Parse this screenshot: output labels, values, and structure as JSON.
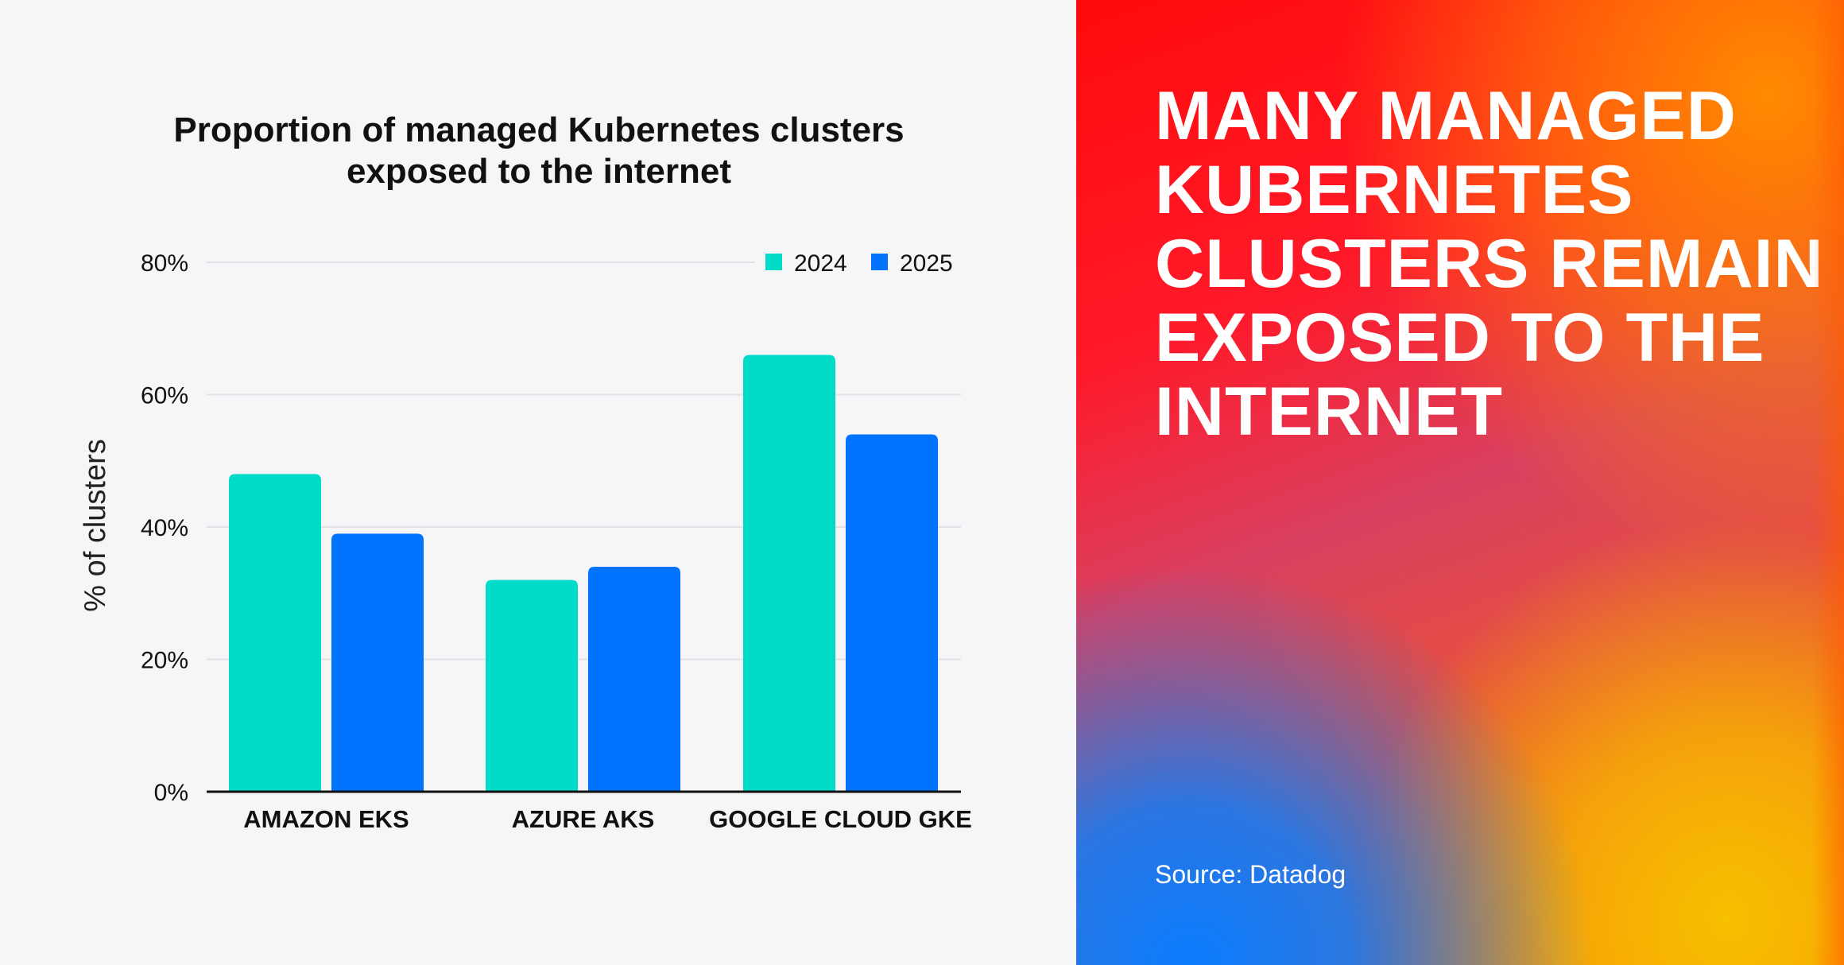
{
  "chart_data": {
    "type": "bar",
    "title": [
      "Proportion of managed Kubernetes clusters",
      "exposed to the internet"
    ],
    "xlabel": "",
    "ylabel": "% of clusters",
    "ylim": [
      0,
      80
    ],
    "yticks": [
      "0%",
      "20%",
      "40%",
      "60%",
      "80%"
    ],
    "ytick_values": [
      0,
      20,
      40,
      60,
      80
    ],
    "categories": [
      "AMAZON EKS",
      "AZURE AKS",
      "GOOGLE CLOUD GKE"
    ],
    "series": [
      {
        "name": "2024",
        "color": "#00dcc8",
        "values": [
          48,
          32,
          66
        ]
      },
      {
        "name": "2025",
        "color": "#0074ff",
        "values": [
          39,
          34,
          54
        ]
      }
    ],
    "grid": true,
    "legend": "top-right"
  },
  "panel": {
    "headline": "MANY MANAGED KUBERNETES CLUSTERS REMAIN EXPOSED TO THE INTERNET",
    "source": "Source: Datadog"
  }
}
